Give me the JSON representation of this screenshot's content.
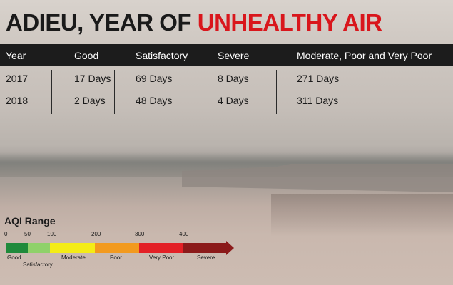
{
  "title": {
    "part1": "ADIEU, YEAR OF ",
    "part2": "UNHEALTHY AIR"
  },
  "table": {
    "headers": [
      "Year",
      "Good",
      "Satisfactory",
      "Severe",
      "Moderate, Poor and Very Poor"
    ],
    "rows": [
      [
        "2017",
        "17 Days",
        "69 Days",
        "8 Days",
        "271 Days"
      ],
      [
        "2018",
        "2 Days",
        "48 Days",
        "4 Days",
        "311 Days"
      ]
    ]
  },
  "aqi": {
    "title": "AQI Range",
    "ticks": [
      "0",
      "50",
      "100",
      "200",
      "300",
      "400"
    ],
    "categories": [
      "Good",
      "Satisfactory",
      "Moderate",
      "Poor",
      "Very Poor",
      "Severe"
    ],
    "colors": [
      "#1f8a3b",
      "#8fd16a",
      "#f4ec16",
      "#f29a1f",
      "#e32026",
      "#8b1a1a"
    ]
  }
}
